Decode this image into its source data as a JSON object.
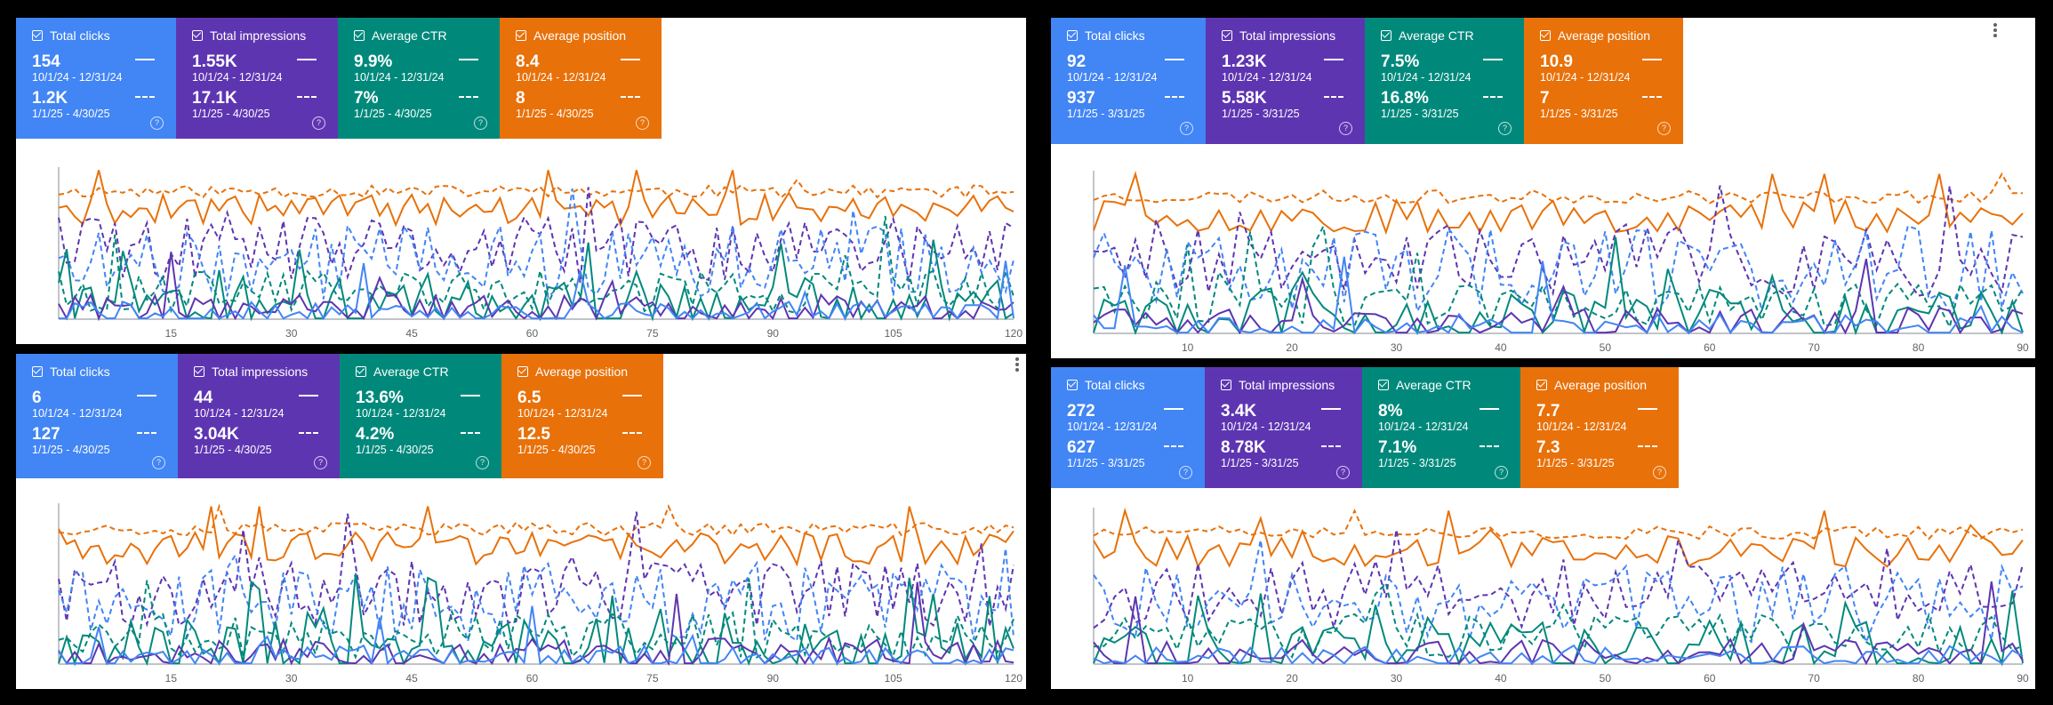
{
  "colors": {
    "clicks": "#4285f4",
    "impressions": "#5e35b1",
    "ctr": "#00897b",
    "position": "#e8710a",
    "tick": "#5f6368"
  },
  "panels": [
    {
      "cards": [
        {
          "label": "Total clicks",
          "v1": "154",
          "r1": "10/1/24 - 12/31/24",
          "v2": "1.2K",
          "r2": "1/1/25 - 4/30/25"
        },
        {
          "label": "Total impressions",
          "v1": "1.55K",
          "r1": "10/1/24 - 12/31/24",
          "v2": "17.1K",
          "r2": "1/1/25 - 4/30/25"
        },
        {
          "label": "Average CTR",
          "v1": "9.9%",
          "r1": "10/1/24 - 12/31/24",
          "v2": "7%",
          "r2": "1/1/25 - 4/30/25"
        },
        {
          "label": "Average position",
          "v1": "8.4",
          "r1": "10/1/24 - 12/31/24",
          "v2": "8",
          "r2": "1/1/25 - 4/30/25"
        }
      ],
      "chart_data": {
        "type": "line",
        "x_max": 120,
        "xticks": [
          "15",
          "30",
          "45",
          "60",
          "75",
          "90",
          "105",
          "120"
        ],
        "seed": 11
      }
    },
    {
      "cards": [
        {
          "label": "Total clicks",
          "v1": "92",
          "r1": "10/1/24 - 12/31/24",
          "v2": "937",
          "r2": "1/1/25 - 3/31/25"
        },
        {
          "label": "Total impressions",
          "v1": "1.23K",
          "r1": "10/1/24 - 12/31/24",
          "v2": "5.58K",
          "r2": "1/1/25 - 3/31/25"
        },
        {
          "label": "Average CTR",
          "v1": "7.5%",
          "r1": "10/1/24 - 12/31/24",
          "v2": "16.8%",
          "r2": "1/1/25 - 3/31/25"
        },
        {
          "label": "Average position",
          "v1": "10.9",
          "r1": "10/1/24 - 12/31/24",
          "v2": "7",
          "r2": "1/1/25 - 3/31/25"
        }
      ],
      "chart_data": {
        "type": "line",
        "x_max": 90,
        "xticks": [
          "10",
          "20",
          "30",
          "40",
          "50",
          "60",
          "70",
          "80",
          "90"
        ],
        "seed": 23
      }
    },
    {
      "cards": [
        {
          "label": "Total clicks",
          "v1": "6",
          "r1": "10/1/24 - 12/31/24",
          "v2": "127",
          "r2": "1/1/25 - 4/30/25"
        },
        {
          "label": "Total impressions",
          "v1": "44",
          "r1": "10/1/24 - 12/31/24",
          "v2": "3.04K",
          "r2": "1/1/25 - 4/30/25"
        },
        {
          "label": "Average CTR",
          "v1": "13.6%",
          "r1": "10/1/24 - 12/31/24",
          "v2": "4.2%",
          "r2": "1/1/25 - 4/30/25"
        },
        {
          "label": "Average position",
          "v1": "6.5",
          "r1": "10/1/24 - 12/31/24",
          "v2": "12.5",
          "r2": "1/1/25 - 4/30/25"
        }
      ],
      "chart_data": {
        "type": "line",
        "x_max": 120,
        "xticks": [
          "15",
          "30",
          "45",
          "60",
          "75",
          "90",
          "105",
          "120"
        ],
        "seed": 37
      }
    },
    {
      "cards": [
        {
          "label": "Total clicks",
          "v1": "272",
          "r1": "10/1/24 - 12/31/24",
          "v2": "627",
          "r2": "1/1/25 - 3/31/25"
        },
        {
          "label": "Total impressions",
          "v1": "3.4K",
          "r1": "10/1/24 - 12/31/24",
          "v2": "8.78K",
          "r2": "1/1/25 - 3/31/25"
        },
        {
          "label": "Average CTR",
          "v1": "8%",
          "r1": "10/1/24 - 12/31/24",
          "v2": "7.1%",
          "r2": "1/1/25 - 3/31/25"
        },
        {
          "label": "Average position",
          "v1": "7.7",
          "r1": "10/1/24 - 12/31/24",
          "v2": "7.3",
          "r2": "1/1/25 - 3/31/25"
        }
      ],
      "chart_data": {
        "type": "line",
        "x_max": 90,
        "xticks": [
          "10",
          "20",
          "30",
          "40",
          "50",
          "60",
          "70",
          "80",
          "90"
        ],
        "seed": 51
      }
    }
  ]
}
